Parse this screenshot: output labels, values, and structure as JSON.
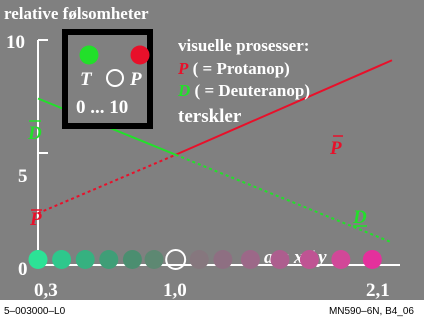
{
  "colors": {
    "background": "#808080",
    "protanop": "#e8102a",
    "deuteranop": "#22e02a",
    "white": "#ffffff"
  },
  "chart_data": {
    "type": "line",
    "title": "relative følsomheter",
    "y_ticks": [
      "10",
      "5",
      "0"
    ],
    "x_ticks": [
      "0,3",
      "1,0",
      "2,1"
    ],
    "xlabel": "a = x / y",
    "xlim": [
      0.3,
      2.1
    ],
    "ylim": [
      0,
      10
    ],
    "series": [
      {
        "name": "P",
        "points": [
          [
            0.3,
            2.3
          ],
          [
            1.0,
            4.9
          ],
          [
            2.1,
            9.1
          ]
        ],
        "solid_from_x": 1.0,
        "color": "#e8102a"
      },
      {
        "name": "D",
        "points": [
          [
            0.3,
            7.4
          ],
          [
            1.0,
            4.9
          ],
          [
            2.1,
            1.0
          ]
        ],
        "solid_to_x": 1.0,
        "color": "#22e02a"
      }
    ],
    "series_labels": {
      "P_bar_right": "P",
      "D_bar_left": "D",
      "P_left": "P",
      "D_right": "D"
    },
    "circles": [
      {
        "x": 0.3,
        "color": "#2ce296"
      },
      {
        "x": 0.42,
        "color": "#2ec88c"
      },
      {
        "x": 0.54,
        "color": "#36b180"
      },
      {
        "x": 0.66,
        "color": "#3f9e77"
      },
      {
        "x": 0.78,
        "color": "#4b8e70"
      },
      {
        "x": 0.89,
        "color": "#5d8872"
      },
      {
        "x": 1.0,
        "color": "#808080",
        "open": true
      },
      {
        "x": 1.12,
        "color": "#86777e"
      },
      {
        "x": 1.24,
        "color": "#8e6f82"
      },
      {
        "x": 1.38,
        "color": "#9c6888"
      },
      {
        "x": 1.53,
        "color": "#ad5e8e"
      },
      {
        "x": 1.68,
        "color": "#bf5493"
      },
      {
        "x": 1.84,
        "color": "#d14898"
      },
      {
        "x": 2.0,
        "color": "#e4309c"
      }
    ],
    "circle_level": 1.0
  },
  "legend": {
    "box": {
      "T": "T",
      "P": "P",
      "range": "0 ... 10"
    },
    "heading": "visuelle prosesser:",
    "p_letter": "P",
    "p_text": " ( = Protanop)",
    "d_letter": "D",
    "d_text": " ( = Deuteranop)",
    "threshold": "terskler"
  },
  "footer": {
    "left": "5–003000–L0",
    "right": "MN590–6N, B4_06"
  }
}
